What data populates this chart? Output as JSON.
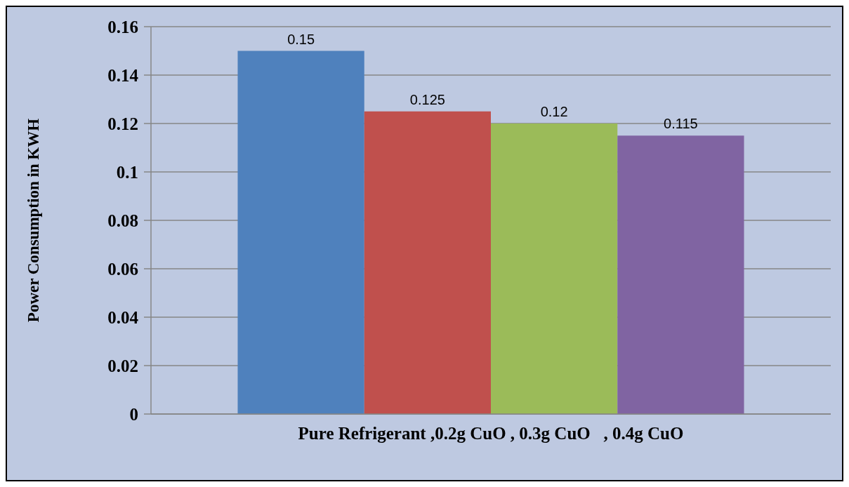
{
  "chart_data": {
    "type": "bar",
    "ylabel": "Power Consumption in KWH",
    "categories": [
      "Pure Refrigerant ,0.2g CuO , 0.3g CuO   , 0.4g CuO"
    ],
    "series": [
      {
        "color": "#4f81bd",
        "values": [
          0.15
        ]
      },
      {
        "color": "#c0504d",
        "values": [
          0.125
        ]
      },
      {
        "color": "#9bbb59",
        "values": [
          0.12
        ]
      },
      {
        "color": "#8064a2",
        "values": [
          0.115
        ]
      }
    ],
    "ylim": [
      0,
      0.16
    ],
    "yticks": [
      0,
      0.02,
      0.04,
      0.06,
      0.08,
      0.1,
      0.12,
      0.14,
      0.16
    ],
    "grid": "y",
    "data_labels": true
  }
}
